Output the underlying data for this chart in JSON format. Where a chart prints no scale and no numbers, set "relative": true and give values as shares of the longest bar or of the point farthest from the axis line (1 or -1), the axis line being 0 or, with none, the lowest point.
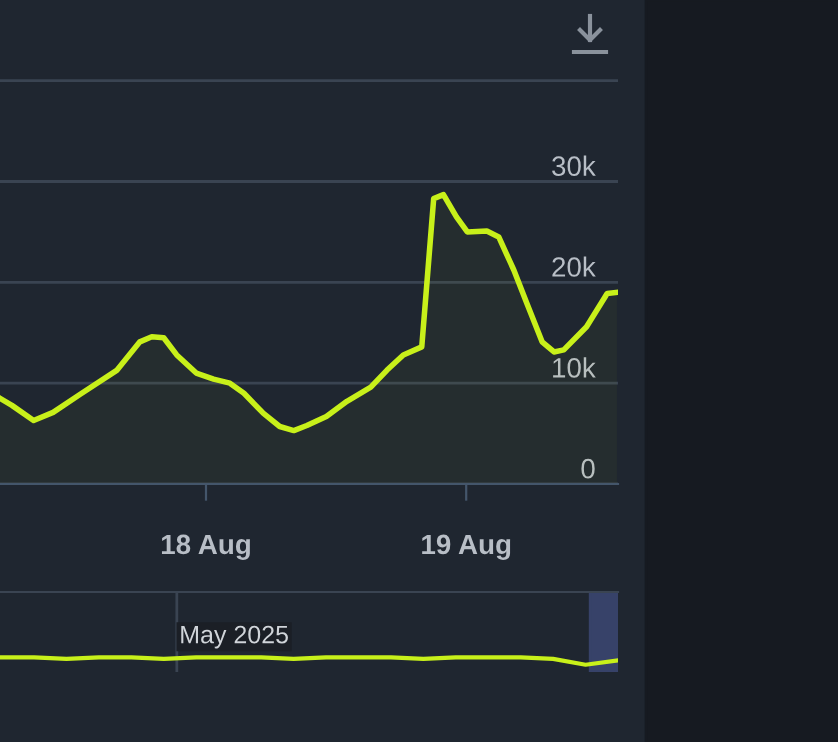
{
  "chart_data": [
    {
      "type": "area",
      "color": "#c8f01a",
      "x": [
        "2025-08-17T05:00",
        "2025-08-17T06:06",
        "2025-08-17T08:06",
        "2025-08-17T09:54",
        "2025-08-17T12:24",
        "2025-08-17T15:48",
        "2025-08-17T17:54",
        "2025-08-17T19:00",
        "2025-08-17T20:06",
        "2025-08-17T21:18",
        "2025-08-17T23:06",
        "2025-08-18T00:42",
        "2025-08-18T02:12",
        "2025-08-18T03:30",
        "2025-08-18T05:18",
        "2025-08-18T06:48",
        "2025-08-18T08:06",
        "2025-08-18T09:18",
        "2025-08-18T11:06",
        "2025-08-18T13:00",
        "2025-08-18T15:12",
        "2025-08-18T16:42",
        "2025-08-18T18:12",
        "2025-08-18T19:54",
        "2025-08-18T21:00",
        "2025-08-18T21:54",
        "2025-08-18T23:06",
        "2025-08-19T00:06",
        "2025-08-19T01:54",
        "2025-08-19T03:00",
        "2025-08-19T04:24",
        "2025-08-19T05:36",
        "2025-08-19T07:00",
        "2025-08-19T08:06",
        "2025-08-19T09:00",
        "2025-08-19T11:06",
        "2025-08-19T13:00",
        "2025-08-19T13:54"
      ],
      "values": [
        8500,
        7800,
        6300,
        7100,
        8900,
        11300,
        14100,
        14600,
        14500,
        12800,
        11000,
        10400,
        10000,
        9000,
        7000,
        5700,
        5300,
        5800,
        6700,
        8200,
        9600,
        11300,
        12800,
        13600,
        28300,
        28700,
        26500,
        25000,
        25100,
        24500,
        21200,
        17900,
        14100,
        13100,
        13300,
        15600,
        18900,
        19000
      ],
      "xlim": [
        "2025-08-17T05:00",
        "2025-08-19T14:00"
      ],
      "xticks": [
        {
          "value": "2025-08-18",
          "label": "18 Aug"
        },
        {
          "value": "2025-08-19",
          "label": "19 Aug"
        }
      ],
      "ylim": [
        0,
        48000
      ],
      "yticks": [
        {
          "value": 0,
          "label": "0"
        },
        {
          "value": 10000,
          "label": "10k"
        },
        {
          "value": 20000,
          "label": "20k"
        },
        {
          "value": 30000,
          "label": "30k"
        },
        {
          "value": 40000,
          "label": null
        }
      ],
      "grid": "y",
      "marker": "none",
      "line_style": "solid",
      "legend": false
    },
    {
      "type": "line",
      "color": "#c8f01a",
      "relative": true,
      "categories": [
        null,
        null,
        null,
        null,
        null,
        null,
        null,
        null,
        null,
        null,
        null,
        null,
        null,
        null,
        null,
        null,
        null,
        null,
        null,
        null
      ],
      "values": [
        1,
        1,
        0.8,
        1,
        1,
        0.8,
        1,
        1,
        1,
        0.8,
        1,
        1,
        1,
        0.8,
        1,
        1,
        1,
        0.8,
        0,
        0.6
      ],
      "annotations": [
        "May 2025"
      ],
      "marker": "none",
      "line_style": "solid",
      "grid": false,
      "legend": false
    }
  ]
}
